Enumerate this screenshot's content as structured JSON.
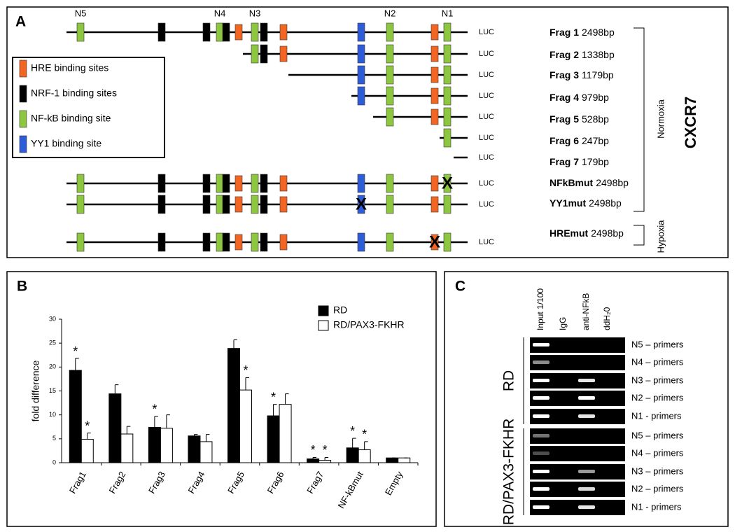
{
  "panel_a": {
    "letter": "A",
    "site_labels": [
      "N5",
      "N4",
      "N3",
      "N2",
      "N1"
    ],
    "legend": [
      {
        "label": "HRE binding sites",
        "color": "#f26522"
      },
      {
        "label": "NRF-1 binding sites",
        "color": "#000000"
      },
      {
        "label": "NF-kB binding site",
        "color": "#8dc63f"
      },
      {
        "label": "YY1 binding site",
        "color": "#2e5bd8"
      }
    ],
    "constructs": [
      {
        "name": "Frag 1",
        "size": "2498bp",
        "reporter": "LUC"
      },
      {
        "name": "Frag 2",
        "size": "1338bp",
        "reporter": "LUC"
      },
      {
        "name": "Frag 3",
        "size": "1179bp",
        "reporter": "LUC"
      },
      {
        "name": "Frag 4",
        "size": "979bp",
        "reporter": "LUC"
      },
      {
        "name": "Frag 5",
        "size": "528bp",
        "reporter": "LUC"
      },
      {
        "name": "Frag 6",
        "size": "247bp",
        "reporter": "LUC"
      },
      {
        "name": "Frag 7",
        "size": "179bp",
        "reporter": "LUC"
      },
      {
        "name": "NFkBmut",
        "size": "2498bp",
        "reporter": "LUC",
        "mutation": "X"
      },
      {
        "name": "YY1mut",
        "size": "2498bp",
        "reporter": "LUC",
        "mutation": "X"
      },
      {
        "name": "HREmut",
        "size": "2498bp",
        "reporter": "LUC",
        "mutation": "X"
      }
    ],
    "conditions": [
      "Normoxia",
      "Hypoxia"
    ],
    "gene": "CXCR7"
  },
  "chart_data": {
    "type": "bar",
    "letter": "B",
    "ylabel": "fold difference",
    "categories": [
      "Frag1",
      "Frag2",
      "Frag3",
      "Frag4",
      "Frag5",
      "Frag6",
      "Frag7",
      "NF-kBmut",
      "Empty"
    ],
    "series": [
      {
        "name": "RD",
        "color": "#000000",
        "values": [
          19.3,
          14.4,
          7.4,
          5.6,
          23.9,
          9.8,
          0.8,
          3.1,
          1.0
        ],
        "errors": [
          2.5,
          1.9,
          2.3,
          0.3,
          1.8,
          2.4,
          0.3,
          2.0,
          0
        ],
        "significance": [
          "*",
          null,
          "*",
          null,
          null,
          "*",
          "*",
          "*",
          null
        ]
      },
      {
        "name": "RD/PAX3-FKHR",
        "color": "#ffffff",
        "values": [
          4.9,
          6.0,
          7.2,
          4.4,
          15.2,
          12.2,
          0.5,
          2.7,
          1.0
        ],
        "errors": [
          1.3,
          1.6,
          2.8,
          1.5,
          2.6,
          2.2,
          0.6,
          1.7,
          0
        ],
        "significance": [
          "*",
          null,
          null,
          null,
          "*",
          null,
          "*",
          "*",
          null
        ]
      }
    ],
    "ylim": [
      0,
      30
    ],
    "yticks": [
      0,
      5,
      10,
      15,
      20,
      25,
      30
    ],
    "grid": false,
    "legend": "top-right"
  },
  "panel_c": {
    "letter": "C",
    "lanes": [
      "Input 1/100",
      "IgG",
      "anti-NFkB",
      "ddH₂0"
    ],
    "groups": [
      "RD",
      "RD/PAX3-FKHR"
    ],
    "primers": [
      "N5 – primers",
      "N4 – primers",
      "N3 – primers",
      "N2 – primers",
      "N1 - primers"
    ]
  }
}
